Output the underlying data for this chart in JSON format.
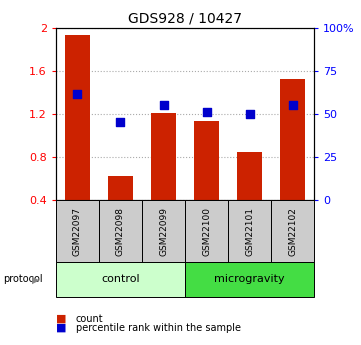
{
  "title": "GDS928 / 10427",
  "samples": [
    "GSM22097",
    "GSM22098",
    "GSM22099",
    "GSM22100",
    "GSM22101",
    "GSM22102"
  ],
  "bar_values": [
    1.93,
    0.62,
    1.21,
    1.13,
    0.85,
    1.52
  ],
  "dot_values": [
    1.38,
    1.12,
    1.28,
    1.22,
    1.2,
    1.28
  ],
  "bar_color": "#cc2200",
  "dot_color": "#0000cc",
  "bar_bottom": 0.4,
  "ylim_left": [
    0.4,
    2.0
  ],
  "ylim_right": [
    0,
    100
  ],
  "yticks_left": [
    0.4,
    0.8,
    1.2,
    1.6,
    2.0
  ],
  "ytick_labels_left": [
    "0.4",
    "0.8",
    "1.2",
    "1.6",
    "2"
  ],
  "ytick_labels_right": [
    "0",
    "25",
    "50",
    "75",
    "100%"
  ],
  "protocol_groups": [
    {
      "label": "control",
      "indices": [
        0,
        1,
        2
      ],
      "color": "#ccffcc"
    },
    {
      "label": "microgravity",
      "indices": [
        3,
        4,
        5
      ],
      "color": "#44dd44"
    }
  ],
  "legend_count_label": "count",
  "legend_pct_label": "percentile rank within the sample",
  "protocol_label": "protocol",
  "label_area_color": "#cccccc",
  "grid_color": "#aaaaaa",
  "dot_size": 30
}
